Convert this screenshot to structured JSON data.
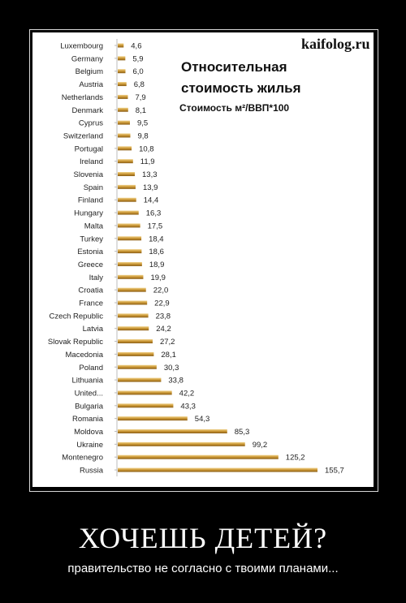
{
  "watermark": "kaifolog.ru",
  "demotivator": {
    "title": "ХОЧЕШЬ ДЕТЕЙ?",
    "caption": "правительство не согласно с твоими планами..."
  },
  "colors": {
    "bar_main": "#c99532",
    "bar_light": "#f0d188",
    "bar_dark": "#8a5d17",
    "background": "#000000",
    "panel": "#ffffff"
  },
  "chart_data": {
    "type": "bar",
    "orientation": "horizontal",
    "title_line1": "Относительная",
    "title_line2": "стоимость жилья",
    "subtitle": "Стоимость м²/ВВП*100",
    "categories": [
      "Luxembourg",
      "Germany",
      "Belgium",
      "Austria",
      "Netherlands",
      "Denmark",
      "Cyprus",
      "Switzerland",
      "Portugal",
      "Ireland",
      "Slovenia",
      "Spain",
      "Finland",
      "Hungary",
      "Malta",
      "Turkey",
      "Estonia",
      "Greece",
      "Italy",
      "Croatia",
      "France",
      "Czech Republic",
      "Latvia",
      "Slovak Republic",
      "Macedonia",
      "Poland",
      "Lithuania",
      "United...",
      "Bulgaria",
      "Romania",
      "Moldova",
      "Ukraine",
      "Montenegro",
      "Russia"
    ],
    "values": [
      4.6,
      5.9,
      6.0,
      6.8,
      7.9,
      8.1,
      9.5,
      9.8,
      10.8,
      11.9,
      13.3,
      13.9,
      14.4,
      16.3,
      17.5,
      18.4,
      18.6,
      18.9,
      19.9,
      22.0,
      22.9,
      23.8,
      24.2,
      27.2,
      28.1,
      30.3,
      33.8,
      42.2,
      43.3,
      54.3,
      85.3,
      99.2,
      125.2,
      155.7
    ],
    "value_labels": [
      "4,6",
      "5,9",
      "6,0",
      "6,8",
      "7,9",
      "8,1",
      "9,5",
      "9,8",
      "10,8",
      "11,9",
      "13,3",
      "13,9",
      "14,4",
      "16,3",
      "17,5",
      "18,4",
      "18,6",
      "18,9",
      "19,9",
      "22,0",
      "22,9",
      "23,8",
      "24,2",
      "27,2",
      "28,1",
      "30,3",
      "33,8",
      "42,2",
      "43,3",
      "54,3",
      "85,3",
      "99,2",
      "125,2",
      "155,7"
    ],
    "xlim": [
      0,
      155.7
    ],
    "grid": false,
    "legend": "none"
  }
}
